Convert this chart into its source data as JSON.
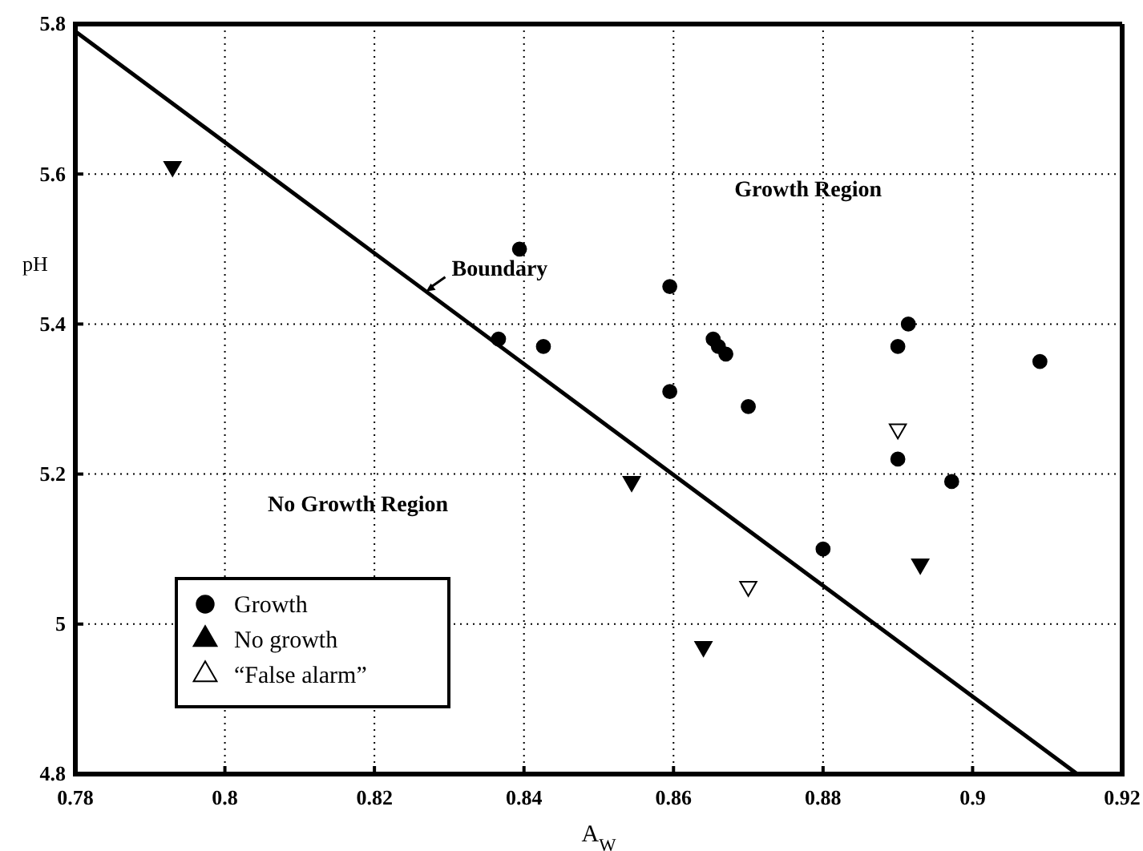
{
  "chart_data": {
    "type": "scatter",
    "xlabel": "A$_{W}$",
    "ylabel": "pH",
    "xlim": [
      0.78,
      0.92
    ],
    "ylim": [
      4.8,
      5.8
    ],
    "xticks": [
      {
        "value": 0.78,
        "label": "0.78"
      },
      {
        "value": 0.8,
        "label": "0.8"
      },
      {
        "value": 0.82,
        "label": "0.82"
      },
      {
        "value": 0.84,
        "label": "0.84"
      },
      {
        "value": 0.86,
        "label": "0.86"
      },
      {
        "value": 0.88,
        "label": "0.88"
      },
      {
        "value": 0.9,
        "label": "0.9"
      },
      {
        "value": 0.92,
        "label": "0.92"
      }
    ],
    "yticks": [
      {
        "value": 4.8,
        "label": "4.8"
      },
      {
        "value": 5,
        "label": "5"
      },
      {
        "value": 5.2,
        "label": "5.2"
      },
      {
        "value": 5.4,
        "label": "5.4"
      },
      {
        "value": 5.6,
        "label": "5.6"
      },
      {
        "value": 5.8,
        "label": "5.8"
      }
    ],
    "grid": true,
    "legend": "bottom left",
    "series": [
      {
        "name": "Growth",
        "marker": "circle",
        "color": "#000000",
        "x": [
          0.8394,
          0.8366,
          0.8426,
          0.8595,
          0.8653,
          0.866,
          0.867,
          0.8595,
          0.87,
          0.8914,
          0.89,
          0.909,
          0.89,
          0.8972,
          0.88
        ],
        "values": [
          5.5,
          5.38,
          5.37,
          5.45,
          5.38,
          5.37,
          5.36,
          5.31,
          5.29,
          5.4,
          5.37,
          5.35,
          5.22,
          5.19,
          5.1
        ]
      },
      {
        "name": "No growth",
        "marker": "triangle",
        "color": "#000000",
        "x": [
          0.793,
          0.8544,
          0.893,
          0.864
        ],
        "values": [
          5.61,
          5.19,
          5.08,
          4.97
        ]
      },
      {
        "name": "“False alarm”",
        "marker": "triangle",
        "color": "#ffffff",
        "x": [
          0.89,
          0.87
        ],
        "values": [
          5.26,
          5.05
        ]
      },
      {
        "name": "Boundary",
        "type": "line",
        "color": "#000000",
        "x": [
          0.78,
          0.914
        ],
        "values": [
          5.79,
          4.8
        ]
      }
    ],
    "annotations": [
      "Growth Region",
      "No Growth Region"
    ]
  }
}
